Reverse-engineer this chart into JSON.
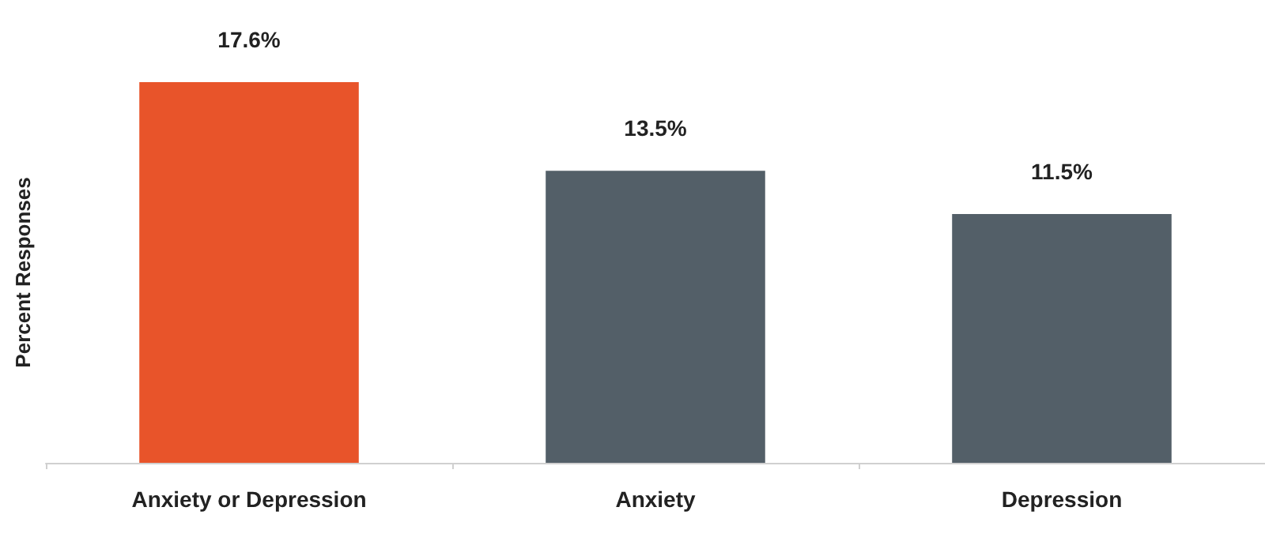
{
  "chart_data": {
    "type": "bar",
    "ylabel": "Percent Responses",
    "categories": [
      "Anxiety or Depression",
      "Anxiety",
      "Depression"
    ],
    "values": [
      17.6,
      13.5,
      11.5
    ],
    "colors": [
      "#e8542a",
      "#535f68",
      "#535f68"
    ],
    "value_labels": [
      "17.6%",
      "13.5%",
      "11.5%"
    ]
  }
}
